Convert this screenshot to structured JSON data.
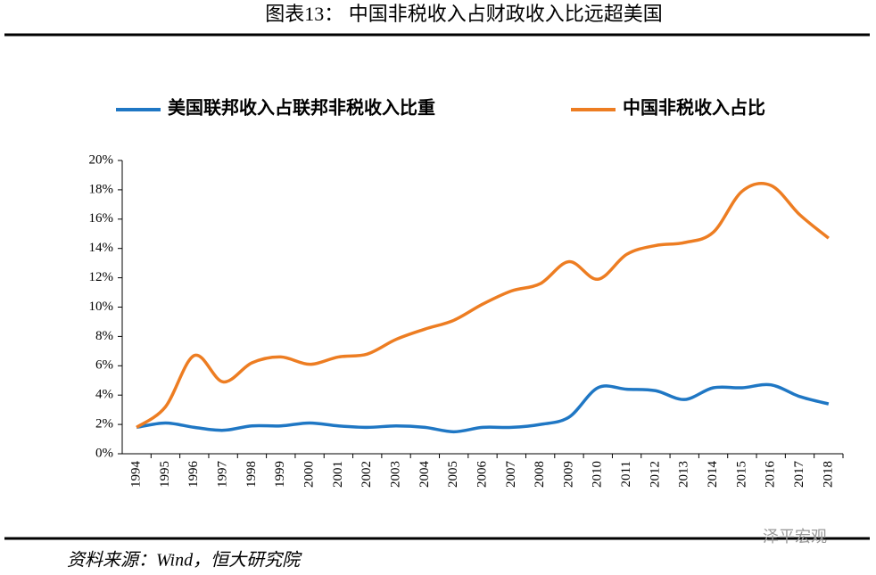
{
  "header": {
    "title": "图表13：   中国非税收入占财政收入比远超美国"
  },
  "chart_data": {
    "type": "line",
    "categories": [
      "1994",
      "1995",
      "1996",
      "1997",
      "1998",
      "1999",
      "2000",
      "2001",
      "2002",
      "2003",
      "2004",
      "2005",
      "2006",
      "2007",
      "2008",
      "2009",
      "2010",
      "2011",
      "2012",
      "2013",
      "2014",
      "2015",
      "2016",
      "2017",
      "2018"
    ],
    "series": [
      {
        "name": "美国联邦收入占联邦非税收入比重",
        "color": "#1f77c4",
        "values": [
          1.8,
          2.1,
          1.8,
          1.6,
          1.9,
          1.9,
          2.1,
          1.9,
          1.8,
          1.9,
          1.8,
          1.5,
          1.8,
          1.8,
          2.0,
          2.5,
          4.5,
          4.4,
          4.3,
          3.7,
          4.5,
          4.5,
          4.7,
          3.9,
          3.4
        ]
      },
      {
        "name": "中国非税收入占比",
        "color": "#ed7d22",
        "values": [
          1.8,
          3.2,
          6.7,
          4.9,
          6.2,
          6.6,
          6.1,
          6.6,
          6.8,
          7.8,
          8.5,
          9.1,
          10.2,
          11.1,
          11.6,
          13.1,
          11.9,
          13.6,
          14.2,
          14.4,
          15.1,
          17.9,
          18.3,
          16.3,
          14.7
        ]
      }
    ],
    "ylim": [
      0,
      20
    ],
    "yticks": [
      {
        "value": 0,
        "label": "0%"
      },
      {
        "value": 2,
        "label": "2%"
      },
      {
        "value": 4,
        "label": "4%"
      },
      {
        "value": 6,
        "label": "6%"
      },
      {
        "value": 8,
        "label": "8%"
      },
      {
        "value": 10,
        "label": "10%"
      },
      {
        "value": 12,
        "label": "12%"
      },
      {
        "value": 14,
        "label": "14%"
      },
      {
        "value": 16,
        "label": "16%"
      },
      {
        "value": 18,
        "label": "18%"
      },
      {
        "value": 20,
        "label": "20%"
      }
    ],
    "smooth": true
  },
  "footer": {
    "source": "资料来源：Wind，恒大研究院",
    "watermark": "泽平宏观"
  }
}
